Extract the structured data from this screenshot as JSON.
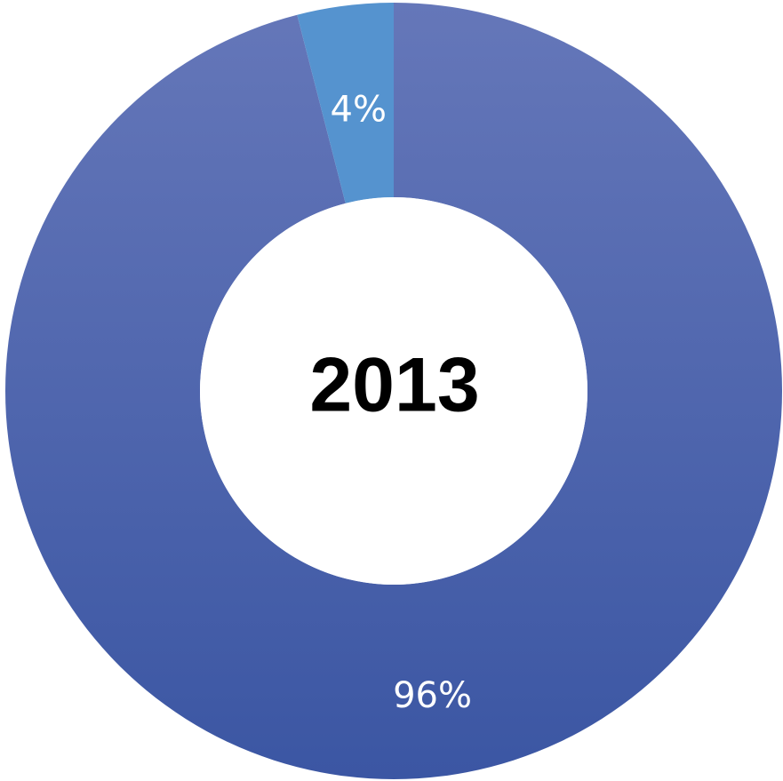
{
  "chart_data": {
    "type": "pie",
    "style": "donut",
    "center_label": "2013",
    "slices": [
      {
        "value": 96,
        "label": "96%",
        "color": "#4a65ad"
      },
      {
        "value": 4,
        "label": "4%",
        "color": "#5593cf"
      }
    ],
    "gradient": {
      "top": "#6577b9",
      "bottom": "#3b56a3"
    }
  }
}
